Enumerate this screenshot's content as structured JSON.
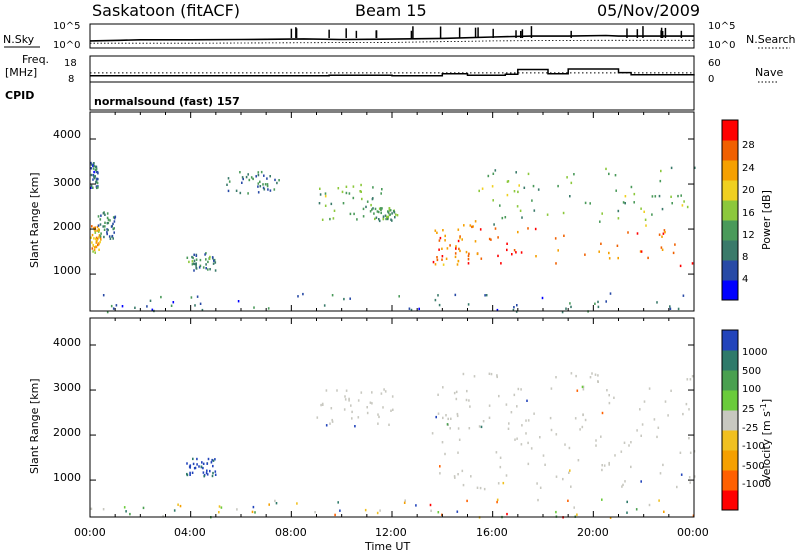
{
  "header": {
    "station": "Saskatoon (fitACF)",
    "beam": "Beam 15",
    "date": "05/Nov/2009"
  },
  "time_axis": {
    "range_hours": [
      0,
      24
    ],
    "ticks": [
      "00:00",
      "04:00",
      "08:00",
      "12:00",
      "16:00",
      "20:00",
      "00:00"
    ],
    "label": "Time UT"
  },
  "noise_panel": {
    "left_label": "N.Sky",
    "left_ticks": [
      "10^5",
      "10^0"
    ],
    "right_label": "N.Search",
    "right_ticks": [
      "10^5",
      "10^0"
    ]
  },
  "freq_panel": {
    "left_label_1": "Freq.",
    "left_label_2": "[MHz]",
    "left_ticks": [
      "18",
      "8"
    ],
    "right_label": "Nave",
    "right_ticks": [
      "60",
      "0"
    ]
  },
  "cpid": {
    "label": "CPID",
    "value": "normalsound (fast) 157"
  },
  "power_panel": {
    "ylabel": "Slant Range [km]",
    "yticks": [
      "4000",
      "3000",
      "2000",
      "1000"
    ],
    "colorbar_label": "Power [dB]",
    "colorbar_ticks": [
      "28",
      "24",
      "20",
      "16",
      "12",
      "8",
      "4"
    ]
  },
  "velocity_panel": {
    "ylabel": "Slant Range [km]",
    "yticks": [
      "4000",
      "3000",
      "2000",
      "1000"
    ],
    "colorbar_label": "Velocity [m s",
    "colorbar_exp": "-1",
    "colorbar_label_end": "]",
    "colorbar_ticks": [
      "1000",
      "500",
      "100",
      "25",
      "-25",
      "-100",
      "-500",
      "-1000"
    ]
  },
  "colors": {
    "power_scale": [
      "#0000ff",
      "#284aa6",
      "#3a7a6a",
      "#4a9a5a",
      "#8cc83c",
      "#f0d020",
      "#f5a000",
      "#f06000",
      "#ff0000"
    ],
    "velocity_scale": [
      "#2244bb",
      "#2f7a6a",
      "#4aa050",
      "#6acb3a",
      "#c8c8c0",
      "#f0c020",
      "#f5a000",
      "#ff6000",
      "#ff0000"
    ]
  },
  "chart_data": [
    {
      "type": "line",
      "title": "N.Sky / N.Search",
      "x_units": "hours UT",
      "y_scale": "log",
      "ylim": [
        1,
        100000
      ],
      "series": [
        {
          "name": "N.Sky",
          "x": [
            0,
            1.2,
            2,
            4,
            6,
            8,
            8.5,
            10,
            12,
            14,
            16,
            17.5,
            19,
            20.5,
            21,
            22.5,
            24
          ],
          "values": [
            30,
            40,
            50,
            50,
            60,
            70,
            80,
            60,
            70,
            100,
            200,
            300,
            300,
            400,
            300,
            300,
            300
          ]
        },
        {
          "name": "N.Search",
          "x": [
            0,
            4,
            8,
            12,
            16,
            20,
            24
          ],
          "values": [
            10,
            10,
            12,
            15,
            30,
            40,
            40
          ]
        }
      ]
    },
    {
      "type": "line",
      "title": "Freq. / Nave",
      "x_units": "hours UT",
      "series": [
        {
          "name": "Freq. [MHz]",
          "ylim": [
            8,
            18
          ],
          "x": [
            0,
            0.2,
            4,
            8,
            9.5,
            12,
            14,
            15,
            16.5,
            17,
            18.2,
            19,
            21,
            21.5,
            24
          ],
          "values": [
            10.4,
            10.4,
            10.4,
            10.4,
            10.6,
            10.4,
            11.2,
            10.6,
            11.0,
            12.8,
            11.2,
            13.0,
            11.6,
            10.8,
            11.0
          ]
        },
        {
          "name": "Nave",
          "ylim": [
            0,
            60
          ],
          "x": [
            0,
            24
          ],
          "values": [
            21,
            21
          ]
        }
      ]
    },
    {
      "type": "heatmap",
      "title": "Power",
      "x": "Time UT (hours)",
      "ylabel": "Slant Range [km]",
      "xlim": [
        0,
        24
      ],
      "ylim": [
        180,
        4600
      ],
      "zlabel": "Power [dB]",
      "zlim": [
        0,
        32
      ],
      "regions": [
        {
          "t": [
            0.0,
            0.4
          ],
          "r": [
            1500,
            2100
          ],
          "p": 22
        },
        {
          "t": [
            0.3,
            1.0
          ],
          "r": [
            1800,
            2400
          ],
          "p": 9
        },
        {
          "t": [
            0.0,
            0.3
          ],
          "r": [
            2900,
            3500
          ],
          "p": 8
        },
        {
          "t": [
            3.8,
            5.0
          ],
          "r": [
            1100,
            1500
          ],
          "p": 10
        },
        {
          "t": [
            5.4,
            7.5
          ],
          "r": [
            2800,
            3300
          ],
          "p": 9
        },
        {
          "t": [
            9.0,
            12.0
          ],
          "r": [
            2200,
            3100
          ],
          "p": 14
        },
        {
          "t": [
            11.2,
            12.2
          ],
          "r": [
            2200,
            2500
          ],
          "p": 12
        },
        {
          "t": [
            13.5,
            15.5
          ],
          "r": [
            1200,
            2200
          ],
          "p": 25
        },
        {
          "t": [
            14.5,
            24.0
          ],
          "r": [
            1200,
            2100
          ],
          "p": 27
        },
        {
          "t": [
            15.0,
            24.0
          ],
          "r": [
            2100,
            3400
          ],
          "p": 14
        },
        {
          "t": [
            0.0,
            24.0
          ],
          "r": [
            180,
            600
          ],
          "p": 8
        }
      ]
    },
    {
      "type": "heatmap",
      "title": "Velocity",
      "x": "Time UT (hours)",
      "ylabel": "Slant Range [km]",
      "xlim": [
        0,
        24
      ],
      "ylim": [
        180,
        4600
      ],
      "zlabel": "Velocity [m s-1]",
      "zlim": [
        -1000,
        1000
      ],
      "regions": [
        {
          "t": [
            3.8,
            5.0
          ],
          "r": [
            1100,
            1500
          ],
          "v": 800
        },
        {
          "t": [
            9.0,
            12.0
          ],
          "r": [
            2200,
            3100
          ],
          "v": 0
        },
        {
          "t": [
            13.5,
            24.0
          ],
          "r": [
            800,
            3400
          ],
          "v": 0
        },
        {
          "t": [
            0.0,
            24.0
          ],
          "r": [
            180,
            600
          ],
          "v": 80
        }
      ]
    }
  ]
}
